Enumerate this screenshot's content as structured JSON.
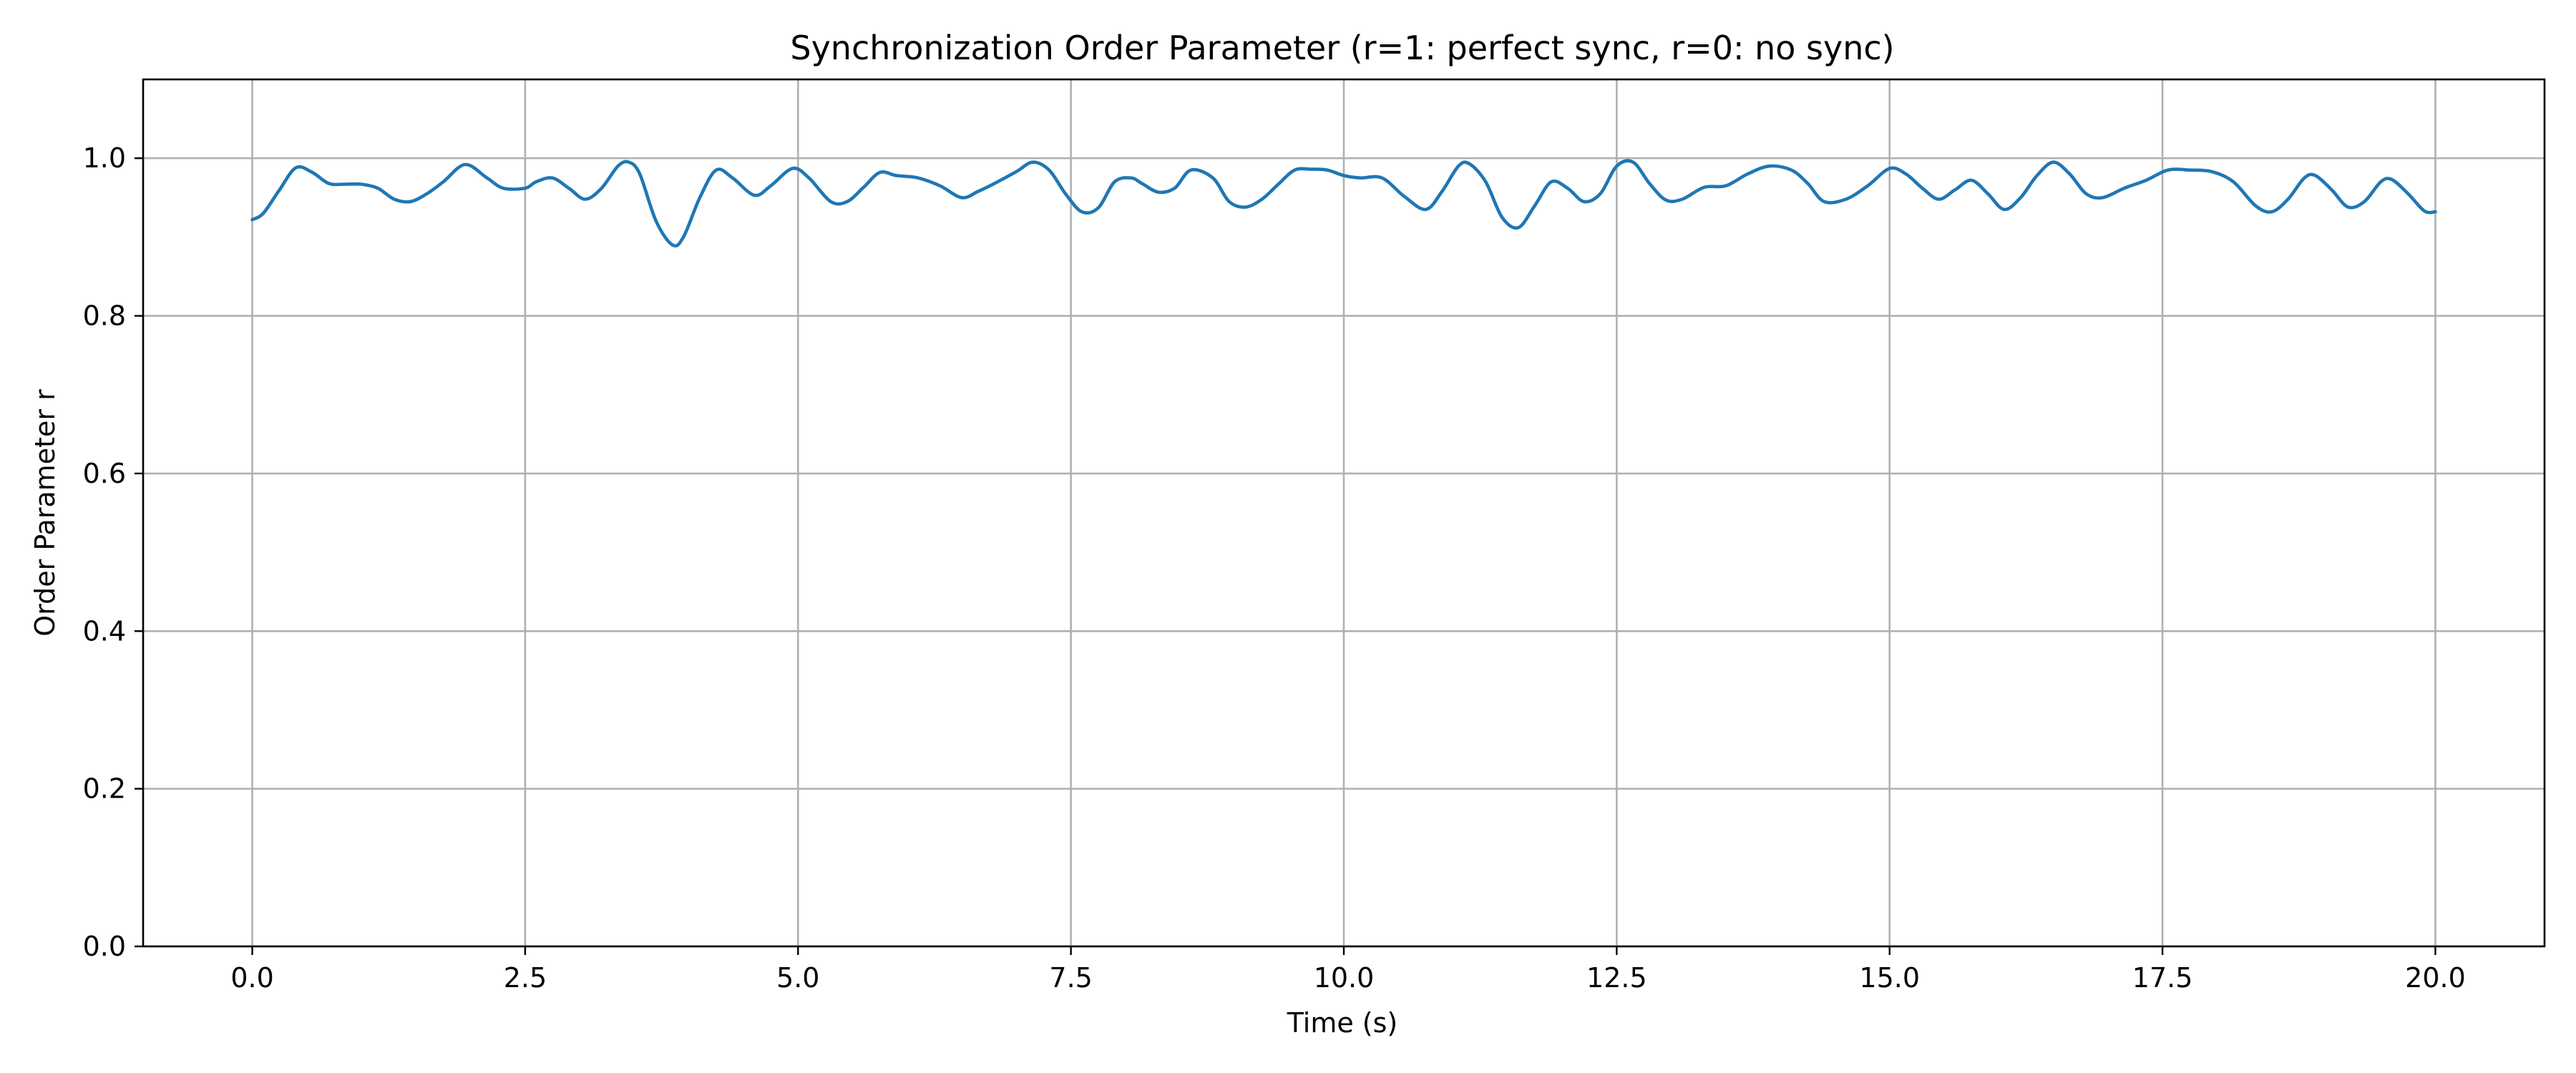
{
  "chart_data": {
    "type": "line",
    "title": "Synchronization Order Parameter (r=1: perfect sync, r=0: no sync)",
    "xlabel": "Time (s)",
    "ylabel": "Order Parameter r",
    "xlim": [
      -1.0,
      21.0
    ],
    "ylim": [
      0.0,
      1.1
    ],
    "x_ticks": [
      "0.0",
      "2.5",
      "5.0",
      "7.5",
      "10.0",
      "12.5",
      "15.0",
      "17.5",
      "20.0"
    ],
    "y_ticks": [
      "0.0",
      "0.2",
      "0.4",
      "0.6",
      "0.8",
      "1.0"
    ],
    "grid": true,
    "series": [
      {
        "color": "#1f77b4",
        "x": [
          0.0,
          0.1,
          0.25,
          0.4,
          0.55,
          0.7,
          0.85,
          1.0,
          1.15,
          1.3,
          1.45,
          1.6,
          1.75,
          1.95,
          2.15,
          2.3,
          2.5,
          2.6,
          2.75,
          2.9,
          3.05,
          3.2,
          3.35,
          3.45,
          3.55,
          3.7,
          3.85,
          3.95,
          4.1,
          4.25,
          4.4,
          4.6,
          4.75,
          4.95,
          5.1,
          5.3,
          5.45,
          5.6,
          5.75,
          5.9,
          6.1,
          6.3,
          6.5,
          6.65,
          6.8,
          7.0,
          7.15,
          7.3,
          7.45,
          7.6,
          7.75,
          7.9,
          8.05,
          8.15,
          8.3,
          8.45,
          8.6,
          8.8,
          8.95,
          9.1,
          9.25,
          9.4,
          9.55,
          9.7,
          9.85,
          10.0,
          10.15,
          10.35,
          10.55,
          10.75,
          10.9,
          11.05,
          11.15,
          11.3,
          11.45,
          11.6,
          11.75,
          11.9,
          12.05,
          12.2,
          12.35,
          12.5,
          12.65,
          12.8,
          12.95,
          13.1,
          13.3,
          13.5,
          13.7,
          13.9,
          14.1,
          14.25,
          14.4,
          14.6,
          14.8,
          15.0,
          15.15,
          15.3,
          15.45,
          15.6,
          15.75,
          15.9,
          16.05,
          16.2,
          16.35,
          16.5,
          16.65,
          16.8,
          16.95,
          17.15,
          17.35,
          17.55,
          17.75,
          17.95,
          18.15,
          18.35,
          18.5,
          18.65,
          18.8,
          18.9,
          19.05,
          19.2,
          19.35,
          19.5,
          19.6,
          19.75,
          19.9,
          20.0
        ],
        "y": [
          0.922,
          0.93,
          0.96,
          0.988,
          0.982,
          0.968,
          0.967,
          0.967,
          0.962,
          0.948,
          0.945,
          0.955,
          0.97,
          0.992,
          0.975,
          0.962,
          0.962,
          0.97,
          0.975,
          0.962,
          0.948,
          0.962,
          0.99,
          0.995,
          0.98,
          0.92,
          0.89,
          0.9,
          0.95,
          0.985,
          0.975,
          0.953,
          0.965,
          0.987,
          0.975,
          0.945,
          0.945,
          0.963,
          0.982,
          0.978,
          0.975,
          0.965,
          0.95,
          0.958,
          0.968,
          0.983,
          0.995,
          0.985,
          0.955,
          0.932,
          0.937,
          0.97,
          0.975,
          0.968,
          0.957,
          0.962,
          0.985,
          0.975,
          0.945,
          0.938,
          0.948,
          0.967,
          0.985,
          0.986,
          0.985,
          0.978,
          0.975,
          0.975,
          0.952,
          0.935,
          0.958,
          0.99,
          0.993,
          0.97,
          0.925,
          0.912,
          0.94,
          0.97,
          0.962,
          0.945,
          0.955,
          0.99,
          0.995,
          0.968,
          0.947,
          0.948,
          0.963,
          0.965,
          0.98,
          0.99,
          0.985,
          0.968,
          0.945,
          0.948,
          0.965,
          0.987,
          0.98,
          0.962,
          0.948,
          0.96,
          0.972,
          0.955,
          0.935,
          0.95,
          0.978,
          0.995,
          0.98,
          0.955,
          0.95,
          0.962,
          0.972,
          0.985,
          0.985,
          0.983,
          0.97,
          0.94,
          0.932,
          0.948,
          0.975,
          0.978,
          0.96,
          0.938,
          0.945,
          0.97,
          0.973,
          0.955,
          0.933,
          0.932
        ]
      }
    ]
  }
}
